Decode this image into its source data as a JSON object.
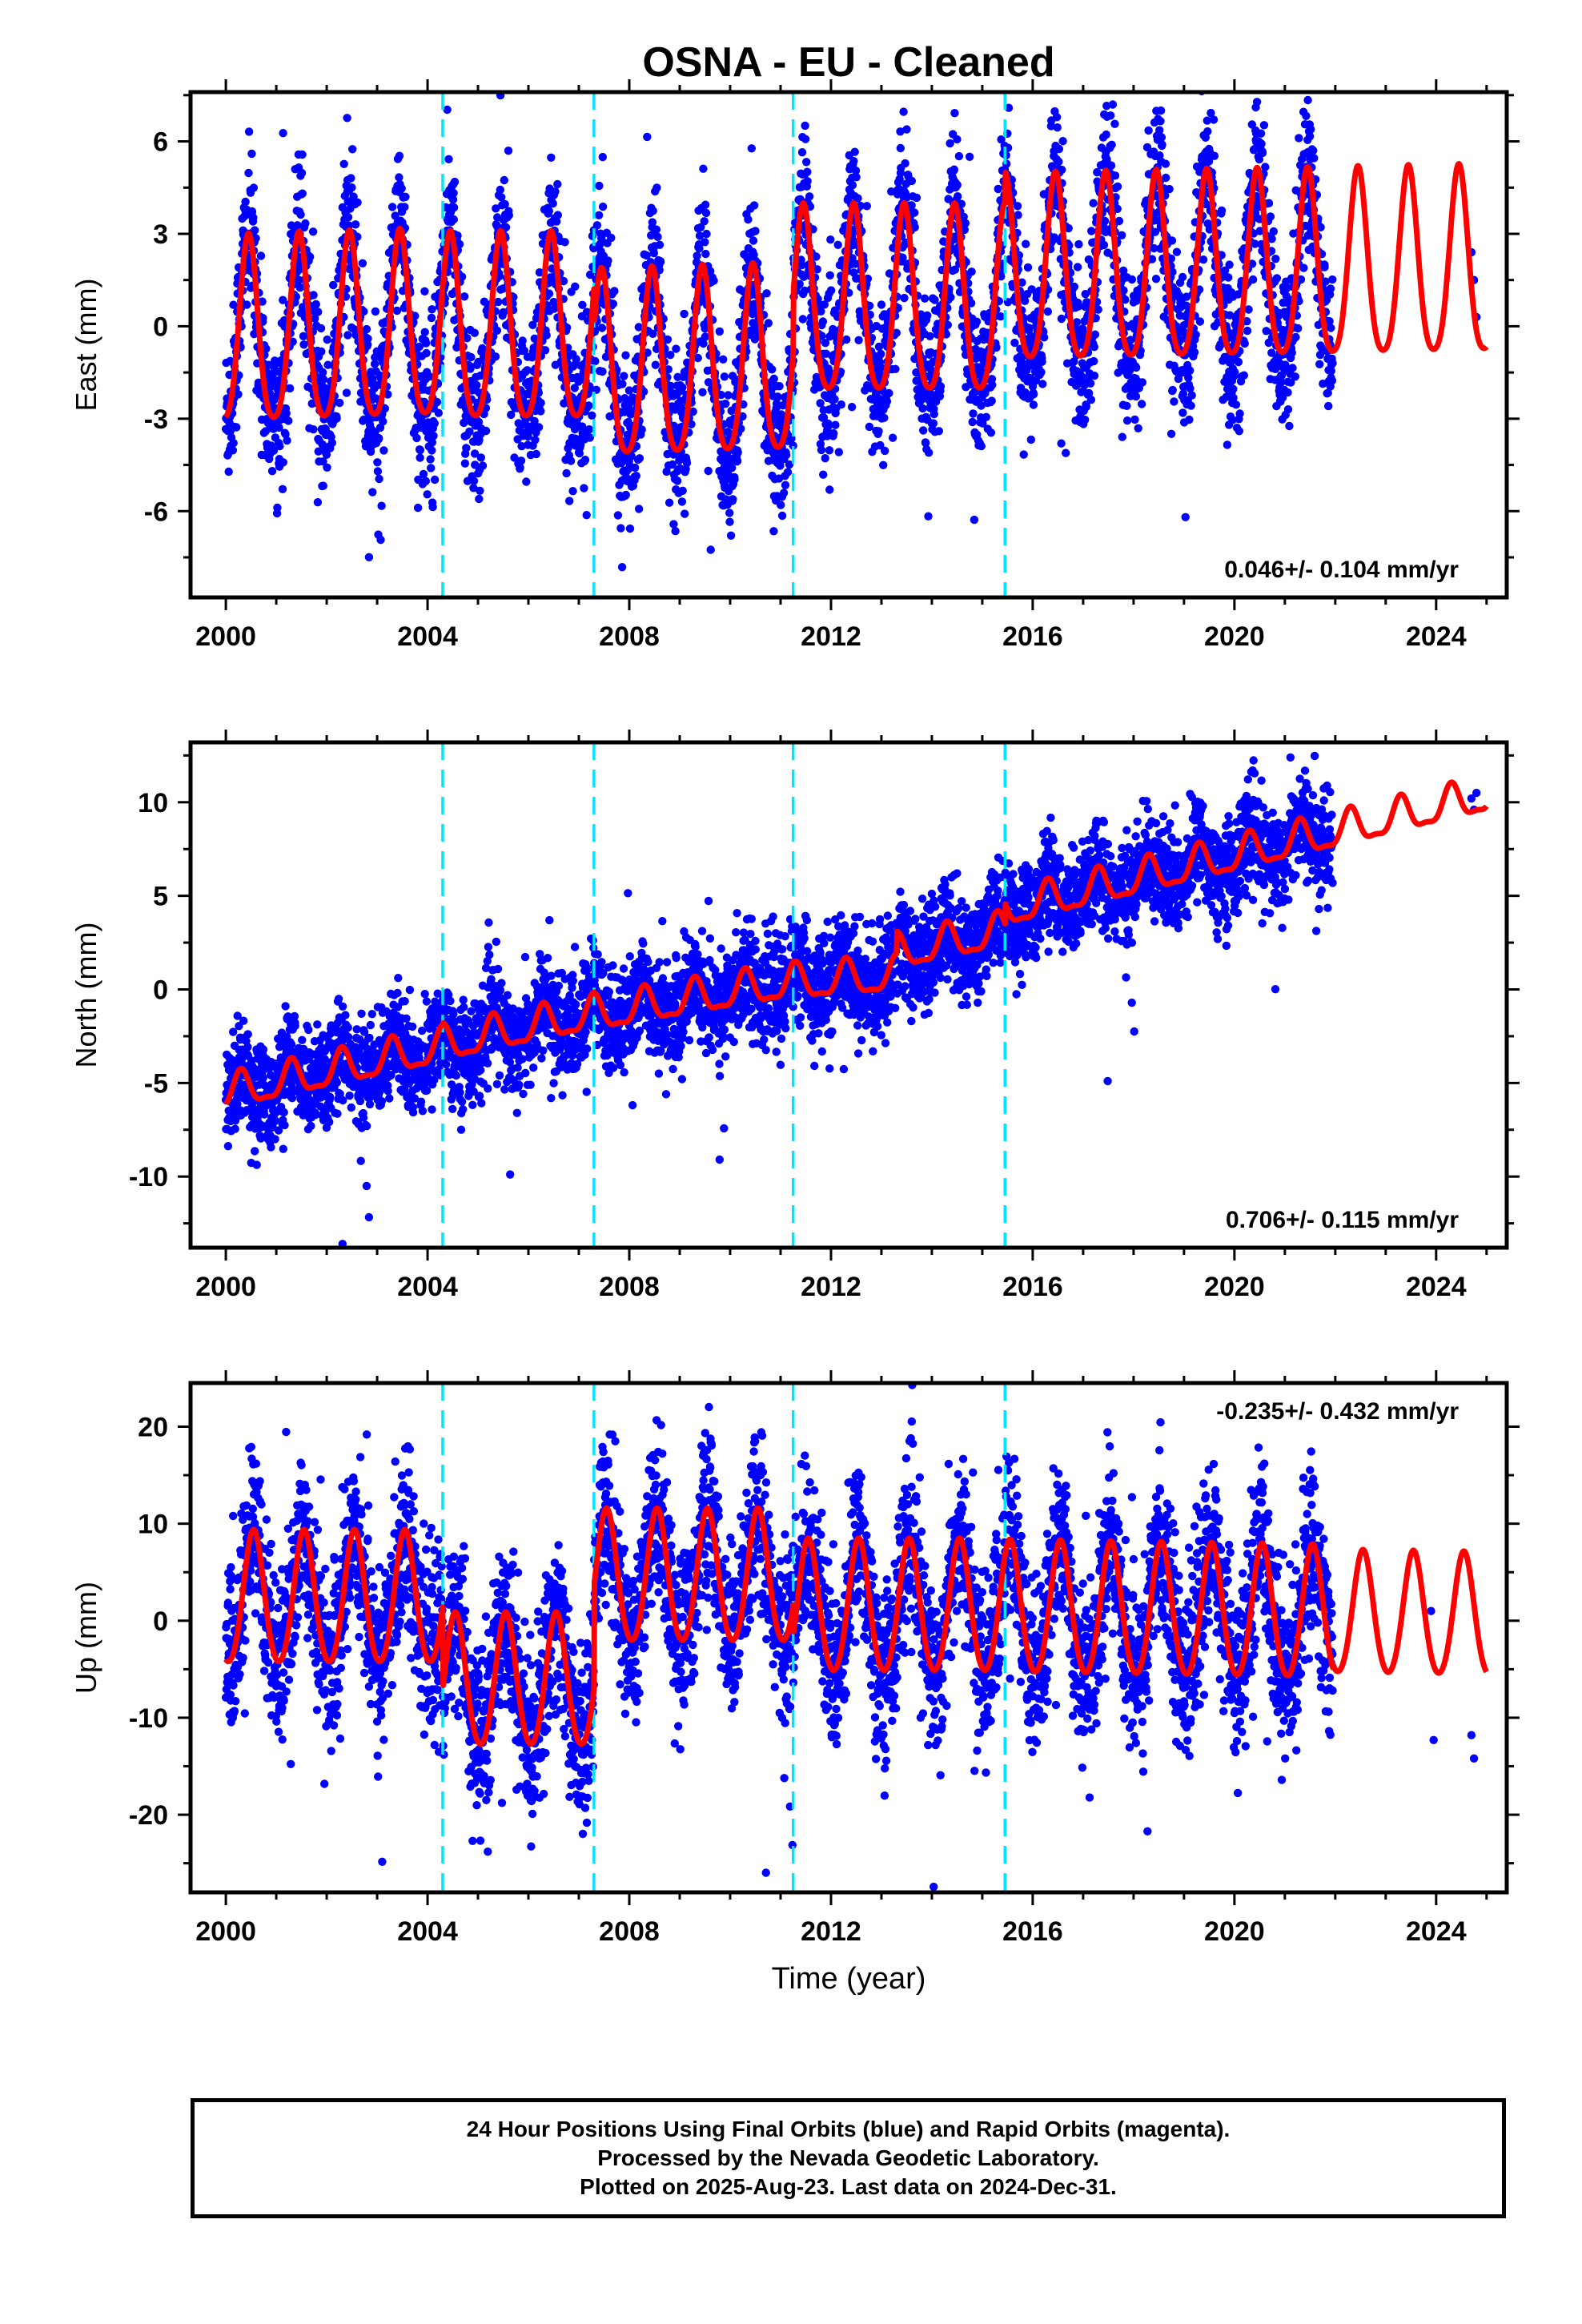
{
  "chart_data": [
    {
      "type": "scatter",
      "panel": "east",
      "title": "OSNA  - EU - Cleaned",
      "ylabel": "East (mm)",
      "xlabel": "",
      "xlim": [
        1999.3,
        2025.4
      ],
      "ylim": [
        -8.8,
        7.6
      ],
      "xticks": [
        2000,
        2004,
        2008,
        2012,
        2016,
        2020,
        2024
      ],
      "yticks": [
        -6,
        -3,
        0,
        3,
        6
      ],
      "ytick_labels": [
        "-6",
        "-3",
        "0",
        "3",
        "6"
      ],
      "annotation": "0.046+/- 0.104 mm/yr",
      "annotation_position": "bottom-right",
      "breaks": [
        2004.3,
        2007.3,
        2011.25,
        2015.45
      ],
      "model": {
        "color": "#ff0000",
        "amplitude": 3.0,
        "amplitude_late": 3.0,
        "semiannual": 0.5,
        "phase_peak": 0.45,
        "segments": [
          {
            "x0": 2000.0,
            "x1": 2004.3,
            "offset": -0.5,
            "slope": 0.05
          },
          {
            "x0": 2004.3,
            "x1": 2007.3,
            "offset": -0.4,
            "slope": 0.0
          },
          {
            "x0": 2007.3,
            "x1": 2011.25,
            "offset": -1.6,
            "slope": 0.05
          },
          {
            "x0": 2011.25,
            "x1": 2015.45,
            "offset": 0.5,
            "slope": 0.0
          },
          {
            "x0": 2015.45,
            "x1": 2025.0,
            "offset": 1.5,
            "slope": 0.03
          }
        ]
      },
      "observations": {
        "color": "#0000ff",
        "x_start": 2000.0,
        "x_end": 2021.95,
        "noise": 1.25,
        "late_points": [
          [
            2024.7,
            2.4
          ],
          [
            2024.75,
            1.5
          ],
          [
            2024.8,
            0.3
          ]
        ]
      }
    },
    {
      "type": "scatter",
      "panel": "north",
      "title": "",
      "ylabel": "North (mm)",
      "xlabel": "",
      "xlim": [
        1999.3,
        2025.4
      ],
      "ylim": [
        -13.8,
        13.2
      ],
      "xticks": [
        2000,
        2004,
        2008,
        2012,
        2016,
        2020,
        2024
      ],
      "yticks": [
        -10,
        -5,
        0,
        5,
        10
      ],
      "ytick_labels": [
        "-10",
        "-5",
        "0",
        "5",
        "10"
      ],
      "annotation": "0.706+/- 0.115 mm/yr",
      "annotation_position": "bottom-right",
      "breaks": [
        2004.3,
        2007.3,
        2011.25,
        2015.45
      ],
      "model": {
        "color": "#ff0000",
        "amplitude": 0.9,
        "amplitude_late": 0.9,
        "semiannual": 0.3,
        "phase_peak": 0.3,
        "segments": [
          {
            "x0": 2000.0,
            "x1": 2004.3,
            "offset": -5.6,
            "slope": 0.58
          },
          {
            "x0": 2004.3,
            "x1": 2007.3,
            "offset": -3.0,
            "slope": 0.55
          },
          {
            "x0": 2007.3,
            "x1": 2011.25,
            "offset": -1.4,
            "slope": 0.45
          },
          {
            "x0": 2011.25,
            "x1": 2013.3,
            "offset": 0.3,
            "slope": 0.2
          },
          {
            "x0": 2013.3,
            "x1": 2015.45,
            "offset": 1.9,
            "slope": 0.55
          },
          {
            "x0": 2015.45,
            "x1": 2025.0,
            "offset": 4.2,
            "slope": 0.64
          }
        ]
      },
      "observations": {
        "color": "#0000ff",
        "x_start": 2000.0,
        "x_end": 2021.95,
        "noise": 1.35,
        "late_points": [
          [
            2024.7,
            10.2
          ],
          [
            2024.75,
            9.6
          ],
          [
            2024.8,
            10.5
          ]
        ]
      }
    },
    {
      "type": "scatter",
      "panel": "up",
      "title": "",
      "ylabel": "Up (mm)",
      "xlabel": "Time (year)",
      "xlim": [
        1999.3,
        2025.4
      ],
      "ylim": [
        -28,
        24.5
      ],
      "xticks": [
        2000,
        2004,
        2008,
        2012,
        2016,
        2020,
        2024
      ],
      "yticks": [
        -20,
        -10,
        0,
        10,
        20
      ],
      "ytick_labels": [
        "-20",
        "-10",
        "0",
        "10",
        "20"
      ],
      "annotation": "-0.235+/- 0.432 mm/yr",
      "annotation_position": "top-right",
      "breaks": [
        2004.3,
        2007.3,
        2011.25,
        2015.45
      ],
      "model": {
        "color": "#ff0000",
        "amplitude": 6.8,
        "amplitude_late": 6.3,
        "semiannual": 0.6,
        "phase_peak": 0.55,
        "segments": [
          {
            "x0": 2000.0,
            "x1": 2004.3,
            "offset": 2.0,
            "slope": 0.0
          },
          {
            "x0": 2004.3,
            "x1": 2007.3,
            "offset": -6.5,
            "slope": 0.0
          },
          {
            "x0": 2007.3,
            "x1": 2011.25,
            "offset": 4.2,
            "slope": 0.0
          },
          {
            "x0": 2011.25,
            "x1": 2015.45,
            "offset": 1.1,
            "slope": 0.0
          },
          {
            "x0": 2015.45,
            "x1": 2025.0,
            "offset": 1.0,
            "slope": -0.08
          }
        ]
      },
      "observations": {
        "color": "#0000ff",
        "x_start": 2000.0,
        "x_end": 2021.95,
        "noise": 4.3,
        "late_points": [
          [
            2023.9,
            1.0
          ],
          [
            2023.95,
            -12.3
          ],
          [
            2024.7,
            -11.8
          ],
          [
            2024.75,
            -14.2
          ]
        ]
      }
    }
  ],
  "footer": {
    "line1": "24 Hour Positions Using Final Orbits (blue) and Rapid Orbits (magenta).",
    "line2": "Processed by the Nevada Geodetic Laboratory.",
    "line3": "Plotted on 2025-Aug-23. Last data on 2024-Dec-31."
  }
}
